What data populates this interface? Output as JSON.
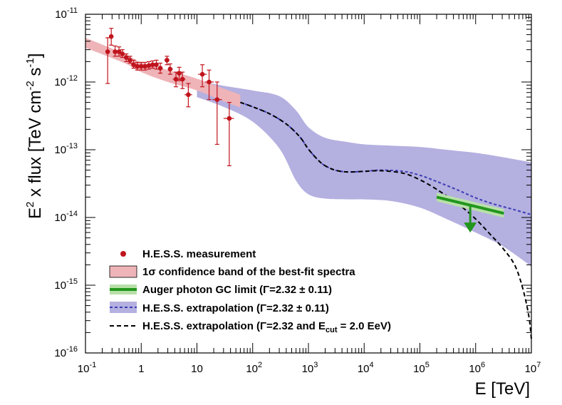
{
  "chart_data": {
    "type": "scatter",
    "x_scale": "log",
    "y_scale": "log",
    "xlim": [
      0.1,
      10000000
    ],
    "ylim": [
      1e-16,
      1e-11
    ],
    "xlabel": "E [TeV]",
    "ylabel": {
      "prefix": "E",
      "sup1": "2",
      "mid": " x flux [TeV cm",
      "sup2": "-2",
      "mid2": " s",
      "sup3": "-1",
      "suffix": "]"
    },
    "x_ticks": [
      {
        "base": "10",
        "exp": "-1",
        "value": 0.1
      },
      {
        "base": "1",
        "exp": "",
        "value": 1
      },
      {
        "base": "10",
        "exp": "",
        "value": 10
      },
      {
        "base": "10",
        "exp": "2",
        "value": 100
      },
      {
        "base": "10",
        "exp": "3",
        "value": 1000
      },
      {
        "base": "10",
        "exp": "4",
        "value": 10000
      },
      {
        "base": "10",
        "exp": "5",
        "value": 100000
      },
      {
        "base": "10",
        "exp": "6",
        "value": 1000000
      },
      {
        "base": "10",
        "exp": "7",
        "value": 10000000
      }
    ],
    "y_ticks": [
      {
        "base": "10",
        "exp": "-16",
        "value": 1e-16
      },
      {
        "base": "10",
        "exp": "-15",
        "value": 1e-15
      },
      {
        "base": "10",
        "exp": "-14",
        "value": 1e-14
      },
      {
        "base": "10",
        "exp": "-13",
        "value": 1e-13
      },
      {
        "base": "10",
        "exp": "-12",
        "value": 1e-12
      },
      {
        "base": "10",
        "exp": "-11",
        "value": 1e-11
      }
    ],
    "colors": {
      "measurement": "#c0141c",
      "confidence_band": "#eeb4b8",
      "auger_line": "#22961e",
      "auger_band": "#b8e0a8",
      "extrapolation_band": "#b4b0e0",
      "extrapolation_line": "#3c3cb4",
      "cutoff_line": "#000000"
    },
    "hess_measurement": [
      {
        "x": 0.25,
        "y": 2.8e-12,
        "ylo": 9.5e-13,
        "yhi": 4.5e-12,
        "xlo": 0.23,
        "xhi": 0.27
      },
      {
        "x": 0.29,
        "y": 4.7e-12,
        "ylo": 3.5e-12,
        "yhi": 6.2e-12,
        "xlo": 0.27,
        "xhi": 0.31
      },
      {
        "x": 0.34,
        "y": 2.8e-12,
        "ylo": 2.4e-12,
        "yhi": 3.4e-12,
        "xlo": 0.31,
        "xhi": 0.37
      },
      {
        "x": 0.4,
        "y": 2.8e-12,
        "ylo": 2.4e-12,
        "yhi": 3.3e-12,
        "xlo": 0.37,
        "xhi": 0.43
      },
      {
        "x": 0.46,
        "y": 2.6e-12,
        "ylo": 2.3e-12,
        "yhi": 3e-12,
        "xlo": 0.43,
        "xhi": 0.5
      },
      {
        "x": 0.54,
        "y": 2.3e-12,
        "ylo": 2e-12,
        "yhi": 2.6e-12,
        "xlo": 0.5,
        "xhi": 0.58
      },
      {
        "x": 0.63,
        "y": 2.1e-12,
        "ylo": 1.9e-12,
        "yhi": 2.4e-12,
        "xlo": 0.58,
        "xhi": 0.68
      },
      {
        "x": 0.73,
        "y": 1.8e-12,
        "ylo": 1.6e-12,
        "yhi": 2.1e-12,
        "xlo": 0.68,
        "xhi": 0.79
      },
      {
        "x": 0.85,
        "y": 1.7e-12,
        "ylo": 1.5e-12,
        "yhi": 1.95e-12,
        "xlo": 0.79,
        "xhi": 0.92
      },
      {
        "x": 1.0,
        "y": 1.7e-12,
        "ylo": 1.5e-12,
        "yhi": 1.95e-12,
        "xlo": 0.92,
        "xhi": 1.08
      },
      {
        "x": 1.17,
        "y": 1.7e-12,
        "ylo": 1.5e-12,
        "yhi": 1.95e-12,
        "xlo": 1.08,
        "xhi": 1.27
      },
      {
        "x": 1.37,
        "y": 1.75e-12,
        "ylo": 1.55e-12,
        "yhi": 2e-12,
        "xlo": 1.27,
        "xhi": 1.48
      },
      {
        "x": 1.6,
        "y": 1.8e-12,
        "ylo": 1.6e-12,
        "yhi": 2.05e-12,
        "xlo": 1.48,
        "xhi": 1.74
      },
      {
        "x": 1.87,
        "y": 1.8e-12,
        "ylo": 1.55e-12,
        "yhi": 2.1e-12,
        "xlo": 1.74,
        "xhi": 2.03
      },
      {
        "x": 2.2,
        "y": 1.6e-12,
        "ylo": 1.35e-12,
        "yhi": 1.9e-12,
        "xlo": 2.03,
        "xhi": 2.4
      },
      {
        "x": 2.9,
        "y": 2.1e-12,
        "ylo": 1.8e-12,
        "yhi": 2.4e-12,
        "xlo": 2.6,
        "xhi": 3.2
      },
      {
        "x": 3.3,
        "y": 1.55e-12,
        "ylo": 1.3e-12,
        "yhi": 1.85e-12,
        "xlo": 3.0,
        "xhi": 3.7
      },
      {
        "x": 4.2,
        "y": 1.1e-12,
        "ylo": 8.5e-13,
        "yhi": 1.4e-12,
        "xlo": 3.7,
        "xhi": 4.8
      },
      {
        "x": 4.8,
        "y": 1.35e-12,
        "ylo": 1.05e-12,
        "yhi": 1.65e-12,
        "xlo": 4.2,
        "xhi": 5.4
      },
      {
        "x": 5.5,
        "y": 1.1e-12,
        "ylo": 8e-13,
        "yhi": 1.4e-12,
        "xlo": 4.9,
        "xhi": 6.2
      },
      {
        "x": 7.0,
        "y": 6.5e-13,
        "ylo": 4.3e-13,
        "yhi": 9.5e-13,
        "xlo": 6.0,
        "xhi": 8.2
      },
      {
        "x": 12.5,
        "y": 1.3e-12,
        "ylo": 8.5e-13,
        "yhi": 1.8e-12,
        "xlo": 10.5,
        "xhi": 15.0
      },
      {
        "x": 16.5,
        "y": 1e-12,
        "ylo": 5.5e-13,
        "yhi": 1.5e-12,
        "xlo": 14.0,
        "xhi": 20.0
      },
      {
        "x": 23.0,
        "y": 5.5e-13,
        "ylo": 1.2e-13,
        "yhi": 1e-12,
        "xlo": 19.0,
        "xhi": 28.0
      },
      {
        "x": 38.0,
        "y": 2.9e-13,
        "ylo": 5.8e-14,
        "yhi": 5e-13,
        "xlo": 30.0,
        "xhi": 46.0
      }
    ],
    "confidence_band": {
      "x": [
        0.1,
        0.5,
        1,
        3,
        10,
        30,
        60
      ],
      "y_low": [
        3.2e-12,
        1.9e-12,
        1.4e-12,
        1e-12,
        7.5e-13,
        5.2e-13,
        4.2e-13
      ],
      "y_high": [
        4.5e-12,
        2.6e-12,
        1.95e-12,
        1.5e-12,
        1.12e-12,
        8e-13,
        6.5e-13
      ]
    },
    "extrapolation_band": {
      "x": [
        10,
        30,
        100,
        300,
        600,
        1000,
        2000,
        5000,
        10000,
        30000,
        100000,
        300000,
        1000000,
        3000000,
        10000000
      ],
      "y_low": [
        6e-13,
        4.3e-13,
        2.6e-13,
        1.05e-13,
        3.5e-14,
        2.2e-14,
        1.9e-14,
        1.85e-14,
        1.85e-14,
        1.75e-14,
        1.4e-14,
        9.5e-15,
        6e-15,
        3.8e-15,
        1.9e-15
      ],
      "y_high": [
        1.05e-12,
        8.8e-13,
        7.5e-13,
        6.2e-13,
        3.8e-13,
        2.15e-13,
        1.5e-13,
        1.3e-13,
        1.2e-13,
        1.15e-13,
        1.1e-13,
        1e-13,
        9e-14,
        7.8e-14,
        6.5e-14
      ]
    },
    "extrapolation_line": {
      "x": [
        60,
        100,
        200,
        400,
        700,
        1000,
        1500,
        2000,
        3000,
        5000,
        10000,
        20000,
        50000,
        100000,
        200000,
        500000,
        1000000,
        2000000,
        5000000,
        10000000
      ],
      "y": [
        5e-13,
        4.3e-13,
        3.4e-13,
        2.4e-13,
        1.55e-13,
        1.02e-13,
        7e-14,
        5.8e-14,
        5e-14,
        4.7e-14,
        4.8e-14,
        5e-14,
        4.8e-14,
        4.2e-14,
        3.4e-14,
        2.5e-14,
        1.95e-14,
        1.6e-14,
        1.3e-14,
        1.1e-14
      ]
    },
    "cutoff_line": {
      "x": [
        60,
        100,
        200,
        400,
        700,
        1000,
        1500,
        2000,
        3000,
        5000,
        10000,
        20000,
        50000,
        100000,
        200000,
        500000,
        1000000,
        2000000,
        3000000,
        5000000,
        7000000,
        9000000,
        10000000
      ],
      "y": [
        5e-13,
        4.3e-13,
        3.4e-13,
        2.4e-13,
        1.55e-13,
        1.02e-13,
        7e-14,
        5.8e-14,
        5e-14,
        4.7e-14,
        4.8e-14,
        4.9e-14,
        4.5e-14,
        3.6e-14,
        2.6e-14,
        1.55e-14,
        9.5e-15,
        5.2e-15,
        3.6e-15,
        2e-15,
        9e-16,
        3.5e-16,
        1.6e-16
      ]
    },
    "auger_limit": {
      "x1": 200000,
      "y1": 2e-14,
      "x2": 3200000,
      "y2": 1.15e-14,
      "band_width": 0.08,
      "arrow_x": 800000,
      "arrow_y_top": 1.55e-14,
      "arrow_y_bottom": 6e-15
    },
    "legend": [
      {
        "key": "measurement",
        "label": "H.E.S.S. measurement"
      },
      {
        "key": "confidence",
        "label": "1σ confidence band of the best-fit spectra"
      },
      {
        "key": "auger",
        "label": "Auger photon GC limit (Γ=2.32 ± 0.11)"
      },
      {
        "key": "extrapolation",
        "label": "H.E.S.S. extrapolation (Γ=2.32 ± 0.11)"
      },
      {
        "key": "cutoff",
        "label": "H.E.S.S. extrapolation (Γ=2.32 and E",
        "sub": "cut",
        "label_end": " = 2.0 EeV)"
      }
    ]
  }
}
